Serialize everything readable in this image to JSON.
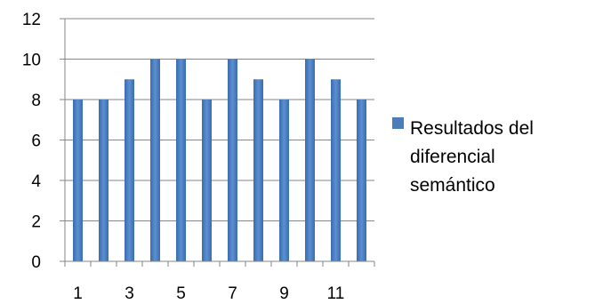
{
  "chart_data": {
    "type": "bar",
    "categories": [
      "1",
      "2",
      "3",
      "4",
      "5",
      "6",
      "7",
      "8",
      "9",
      "10",
      "11",
      "12"
    ],
    "x_tick_labels": [
      "1",
      "3",
      "5",
      "7",
      "9",
      "11"
    ],
    "series": [
      {
        "name": "Resultados del diferencial semántico",
        "values": [
          8,
          8,
          9,
          10,
          10,
          8,
          10,
          9,
          8,
          10,
          9,
          8
        ],
        "color": "#4a7ebb"
      }
    ],
    "ylim": [
      0,
      12
    ],
    "y_ticks": [
      "0",
      "2",
      "4",
      "6",
      "8",
      "10",
      "12"
    ],
    "grid": "horizontal",
    "legend": {
      "position": "right",
      "lines": [
        "Resultados del",
        "diferencial",
        "semántico"
      ]
    }
  }
}
